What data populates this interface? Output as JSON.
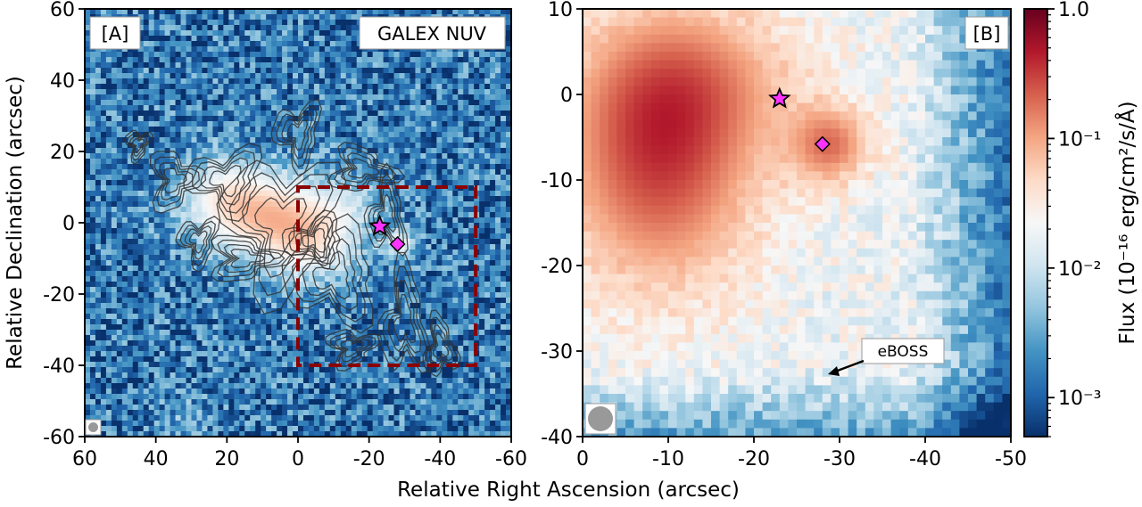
{
  "figure": {
    "xlabel": "Relative Right Ascension (arcsec)",
    "ylabel": "Relative Declination (arcsec)"
  },
  "panels": {
    "a": {
      "tag": "[A]",
      "instrument": "GALEX NUV"
    },
    "b": {
      "tag": "[B]",
      "annotation": "eBOSS"
    }
  },
  "colorbar": {
    "label": "Flux (10⁻¹⁶ erg/cm²/s/Å)",
    "ticks": [
      "1.0",
      "10⁻¹",
      "10⁻²",
      "10⁻³"
    ],
    "cmap": [
      "#08306b",
      "#2166ac",
      "#4393c3",
      "#92c5de",
      "#d1e5f0",
      "#f7f7f7",
      "#fddbc7",
      "#f4a582",
      "#d6604d",
      "#b2182b",
      "#67001f"
    ]
  },
  "colors": {
    "star": "#ff33ff",
    "diamond": "#ff33ff",
    "box": "#8b0000",
    "contour": "#333333"
  },
  "chart_data": [
    {
      "type": "heatmap",
      "panel": "[A]",
      "xlim": [
        60,
        -60
      ],
      "ylim": [
        -60,
        60
      ],
      "xticks": [
        "60",
        "40",
        "20",
        "0",
        "-20",
        "-40",
        "-60"
      ],
      "yticks": [
        "60",
        "40",
        "20",
        "0",
        "-20",
        "-40",
        "-60"
      ],
      "star": {
        "x": -23,
        "y": -1
      },
      "diamond": {
        "x": -28,
        "y": -6
      },
      "box": {
        "x": [
          0,
          -50
        ],
        "y": [
          -40,
          10
        ]
      }
    },
    {
      "type": "heatmap",
      "panel": "[B]",
      "xlim": [
        0,
        -50
      ],
      "ylim": [
        -40,
        10
      ],
      "xticks": [
        "0",
        "-10",
        "-20",
        "-30",
        "-40",
        "-50"
      ],
      "yticks": [
        "10",
        "0",
        "-10",
        "-20",
        "-30",
        "-40"
      ],
      "star": {
        "x": -23,
        "y": -0.5
      },
      "diamond": {
        "x": -28,
        "y": -5.8
      }
    }
  ]
}
